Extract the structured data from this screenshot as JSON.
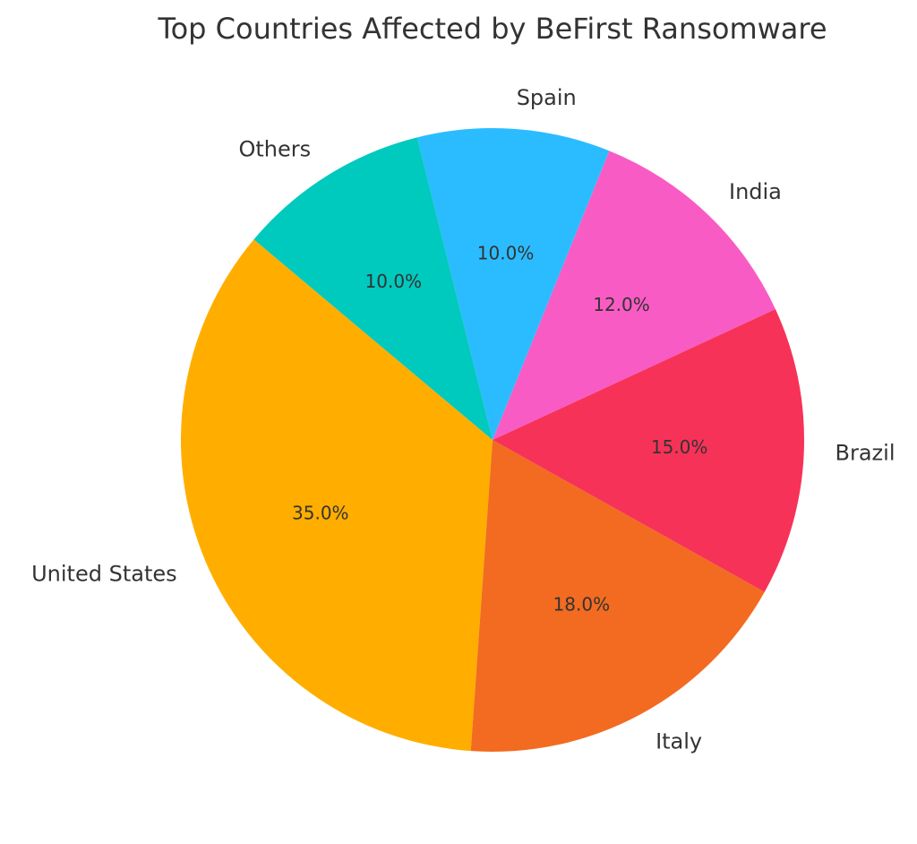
{
  "chart_data": {
    "type": "pie",
    "title": "Top Countries Affected by BeFirst Ransomware",
    "start_angle_deg": 140,
    "direction": "counterclockwise",
    "slices": [
      {
        "label": "United States",
        "value": 35.0,
        "pct_label": "35.0%",
        "color": "#FFAE00"
      },
      {
        "label": "Italy",
        "value": 18.0,
        "pct_label": "18.0%",
        "color": "#F26B21"
      },
      {
        "label": "Brazil",
        "value": 15.0,
        "pct_label": "15.0%",
        "color": "#F73258"
      },
      {
        "label": "India",
        "value": 12.0,
        "pct_label": "12.0%",
        "color": "#F95BC4"
      },
      {
        "label": "Spain",
        "value": 10.0,
        "pct_label": "10.0%",
        "color": "#2BBCFF"
      },
      {
        "label": "Others",
        "value": 10.0,
        "pct_label": "10.0%",
        "color": "#00C9BE"
      }
    ]
  }
}
